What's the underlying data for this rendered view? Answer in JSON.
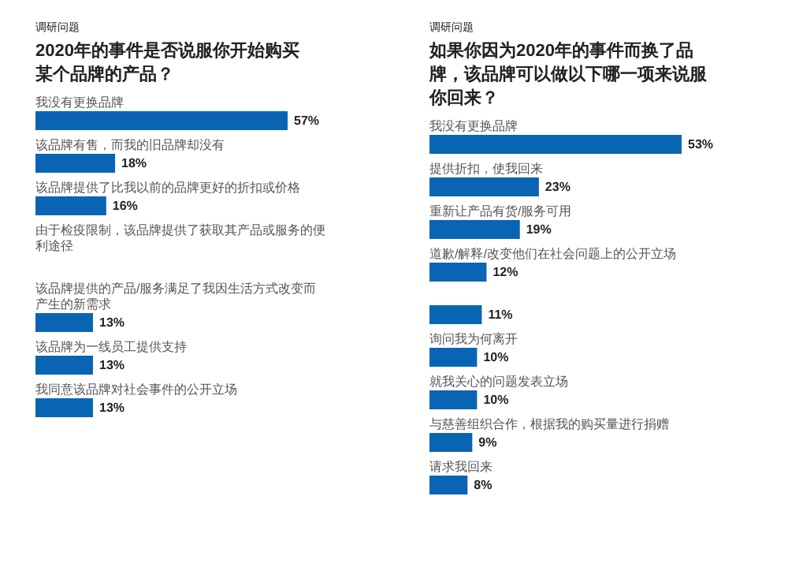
{
  "chart_data": [
    {
      "type": "bar",
      "orientation": "horizontal",
      "subtitle": "调研问题",
      "title": "2020年的事件是否说服你开始购买某个品牌的产品？",
      "categories": [
        "我没有更换品牌",
        "该品牌有售，而我的旧品牌却没有",
        "该品牌提供了比我以前的品牌更好的折扣或价格",
        "由于检疫限制，该品牌提供了获取其产品或服务的便利途径",
        "该品牌提供的产品/服务满足了我因生活方式改变而产生的新需求",
        "该品牌为一线员工提供支持",
        "我同意该品牌对社会事件的公开立场"
      ],
      "values": [
        57,
        18,
        16,
        null,
        13,
        13,
        13
      ],
      "value_labels": [
        "57%",
        "18%",
        "16%",
        null,
        "13%",
        "13%",
        "13%"
      ],
      "color": "#0a64b4"
    },
    {
      "type": "bar",
      "orientation": "horizontal",
      "subtitle": "调研问题",
      "title": "如果你因为2020年的事件而换了品牌，该品牌可以做以下哪一项来说服你回来？",
      "categories": [
        "我没有更换品牌",
        "提供折扣，使我回来",
        "重新让产品有货/服务可用",
        "道歉/解释/改变他们在社会问题上的公开立场",
        null,
        "询问我为何离开",
        "就我关心的问题发表立场",
        "与慈善组织合作，根据我的购买量进行捐赠",
        "请求我回来"
      ],
      "values": [
        53,
        23,
        19,
        12,
        11,
        10,
        10,
        9,
        8
      ],
      "value_labels": [
        "53%",
        "23%",
        "19%",
        "12%",
        "11%",
        "10%",
        "10%",
        "9%",
        "8%"
      ],
      "color": "#0a64b4"
    }
  ]
}
